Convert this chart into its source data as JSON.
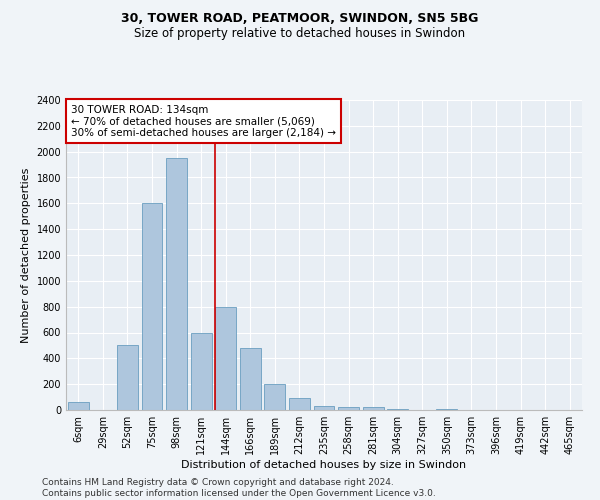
{
  "title1": "30, TOWER ROAD, PEATMOOR, SWINDON, SN5 5BG",
  "title2": "Size of property relative to detached houses in Swindon",
  "xlabel": "Distribution of detached houses by size in Swindon",
  "ylabel": "Number of detached properties",
  "categories": [
    "6sqm",
    "29sqm",
    "52sqm",
    "75sqm",
    "98sqm",
    "121sqm",
    "144sqm",
    "166sqm",
    "189sqm",
    "212sqm",
    "235sqm",
    "258sqm",
    "281sqm",
    "304sqm",
    "327sqm",
    "350sqm",
    "373sqm",
    "396sqm",
    "419sqm",
    "442sqm",
    "465sqm"
  ],
  "values": [
    60,
    0,
    500,
    1600,
    1950,
    600,
    800,
    480,
    200,
    90,
    30,
    25,
    20,
    5,
    0,
    10,
    0,
    0,
    0,
    0,
    0
  ],
  "bar_color": "#aec6dd",
  "bar_edge_color": "#6a9ec0",
  "red_line_color": "#cc0000",
  "marker_label": "30 TOWER ROAD: 134sqm",
  "annotation_line1": "← 70% of detached houses are smaller (5,069)",
  "annotation_line2": "30% of semi-detached houses are larger (2,184) →",
  "ylim": [
    0,
    2400
  ],
  "yticks": [
    0,
    200,
    400,
    600,
    800,
    1000,
    1200,
    1400,
    1600,
    1800,
    2000,
    2200,
    2400
  ],
  "footer1": "Contains HM Land Registry data © Crown copyright and database right 2024.",
  "footer2": "Contains public sector information licensed under the Open Government Licence v3.0.",
  "bg_color": "#f0f4f8",
  "plot_bg_color": "#e8eef4",
  "annotation_box_color": "#ffffff",
  "annotation_box_edge": "#cc0000",
  "title_fontsize": 9,
  "subtitle_fontsize": 8.5,
  "axis_label_fontsize": 8,
  "tick_fontsize": 7,
  "annotation_fontsize": 7.5,
  "footer_fontsize": 6.5,
  "red_line_xindex": 5.565
}
